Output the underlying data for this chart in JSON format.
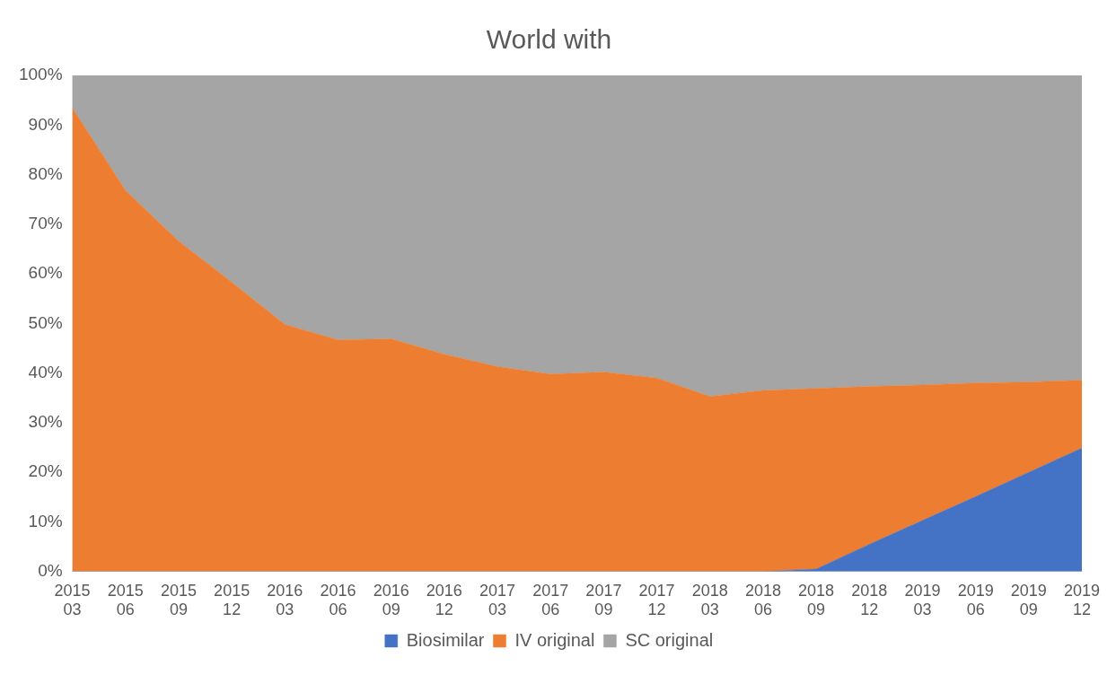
{
  "chart_data": {
    "type": "area",
    "title": "World with",
    "stacked": true,
    "legend": "bottom",
    "categories": [
      "2015 03",
      "2015 06",
      "2015 09",
      "2015 12",
      "2016 03",
      "2016 06",
      "2016 09",
      "2016 12",
      "2017 03",
      "2017 06",
      "2017 09",
      "2017 12",
      "2018 03",
      "2018 06",
      "2018 09",
      "2018 12",
      "2019 03",
      "2019 06",
      "2019 09",
      "2019 12"
    ],
    "ylim": [
      0,
      100
    ],
    "yticks": [
      {
        "value": 0,
        "label": "0%"
      },
      {
        "value": 10,
        "label": "10%"
      },
      {
        "value": 20,
        "label": "20%"
      },
      {
        "value": 30,
        "label": "30%"
      },
      {
        "value": 40,
        "label": "40%"
      },
      {
        "value": 50,
        "label": "50%"
      },
      {
        "value": 60,
        "label": "60%"
      },
      {
        "value": 70,
        "label": "70%"
      },
      {
        "value": 80,
        "label": "80%"
      },
      {
        "value": 90,
        "label": "90%"
      },
      {
        "value": 100,
        "label": "100%"
      }
    ],
    "series": [
      {
        "name": "Biosimilar",
        "color": "#4472c4",
        "values": [
          0,
          0,
          0,
          0,
          0,
          0,
          0,
          0,
          0,
          0,
          0,
          0,
          0,
          0,
          0.5,
          5.5,
          10.3,
          15.1,
          20,
          24.9
        ]
      },
      {
        "name": "IV original",
        "color": "#ed7d31",
        "values": [
          93.4,
          76.8,
          66.6,
          58.3,
          49.8,
          46.7,
          46.9,
          43.8,
          41.3,
          39.8,
          40.2,
          39,
          35.3,
          36.5,
          36.4,
          31.8,
          27.3,
          22.9,
          18.2,
          13.7
        ]
      },
      {
        "name": "SC original",
        "color": "#a5a5a5",
        "values": [
          6.6,
          23.2,
          33.4,
          41.7,
          50.2,
          53.3,
          53.1,
          56.2,
          58.7,
          60.2,
          59.8,
          61,
          64.7,
          63.5,
          63.1,
          62.7,
          62.4,
          62,
          61.8,
          61.4
        ]
      }
    ]
  }
}
